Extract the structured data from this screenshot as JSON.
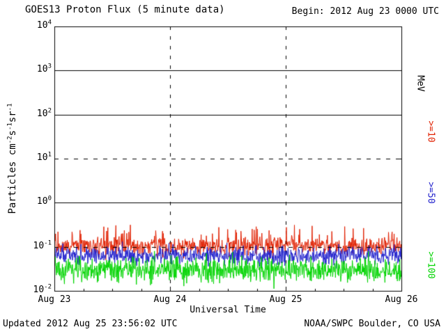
{
  "chart_data": {
    "type": "line",
    "title": "GOES13 Proton Flux (5 minute data)",
    "begin_label": "Begin: 2012 Aug 23 0000 UTC",
    "updated_label": "Updated 2012 Aug 25 23:56:02 UTC",
    "credit_label": "NOAA/SWPC Boulder, CO USA",
    "xlabel": "Universal Time",
    "right_axis_unit": "MeV",
    "ylabel_segments": [
      {
        "t": "Particles cm"
      },
      {
        "t": "-2",
        "sup": true
      },
      {
        "t": "s"
      },
      {
        "t": "-1",
        "sup": true
      },
      {
        "t": "sr"
      },
      {
        "t": "-1",
        "sup": true
      }
    ],
    "x_tick_labels": [
      "Aug 23",
      "Aug 24",
      "Aug 25",
      "Aug 26"
    ],
    "x_range_hours": [
      0,
      72
    ],
    "cadence_minutes": 5,
    "n_points": 864,
    "y_scale": "log",
    "y_tick_exponents": [
      4,
      3,
      2,
      1,
      0,
      -1,
      -2
    ],
    "ylog_min": -2,
    "ylog_max": 4,
    "solid_gridline_exponents": [
      3,
      2,
      0
    ],
    "dashed_gridline_exponents": [
      1,
      -1
    ],
    "vertical_dashed_at_days": [
      1,
      2
    ],
    "grid_color": "#000000",
    "seed": 20120823,
    "series": [
      {
        "name": ">=10",
        "threshold_mev": 10,
        "color": "#e02000",
        "approx_flux": 0.1,
        "log10_mean": -0.98,
        "log10_sigma": 0.11,
        "log10_min": -1.3,
        "log10_max": -0.5,
        "spike_prob": 0.05
      },
      {
        "name": ">=50",
        "threshold_mev": 50,
        "color": "#2020cc",
        "approx_flux": 0.065,
        "log10_mean": -1.2,
        "log10_sigma": 0.1,
        "log10_min": -1.52,
        "log10_max": -0.85
      },
      {
        "name": ">=100",
        "threshold_mev": 100,
        "color": "#00d400",
        "approx_flux": 0.031,
        "log10_mean": -1.52,
        "log10_sigma": 0.14,
        "log10_min": -1.97,
        "log10_max": -1.05
      }
    ]
  }
}
